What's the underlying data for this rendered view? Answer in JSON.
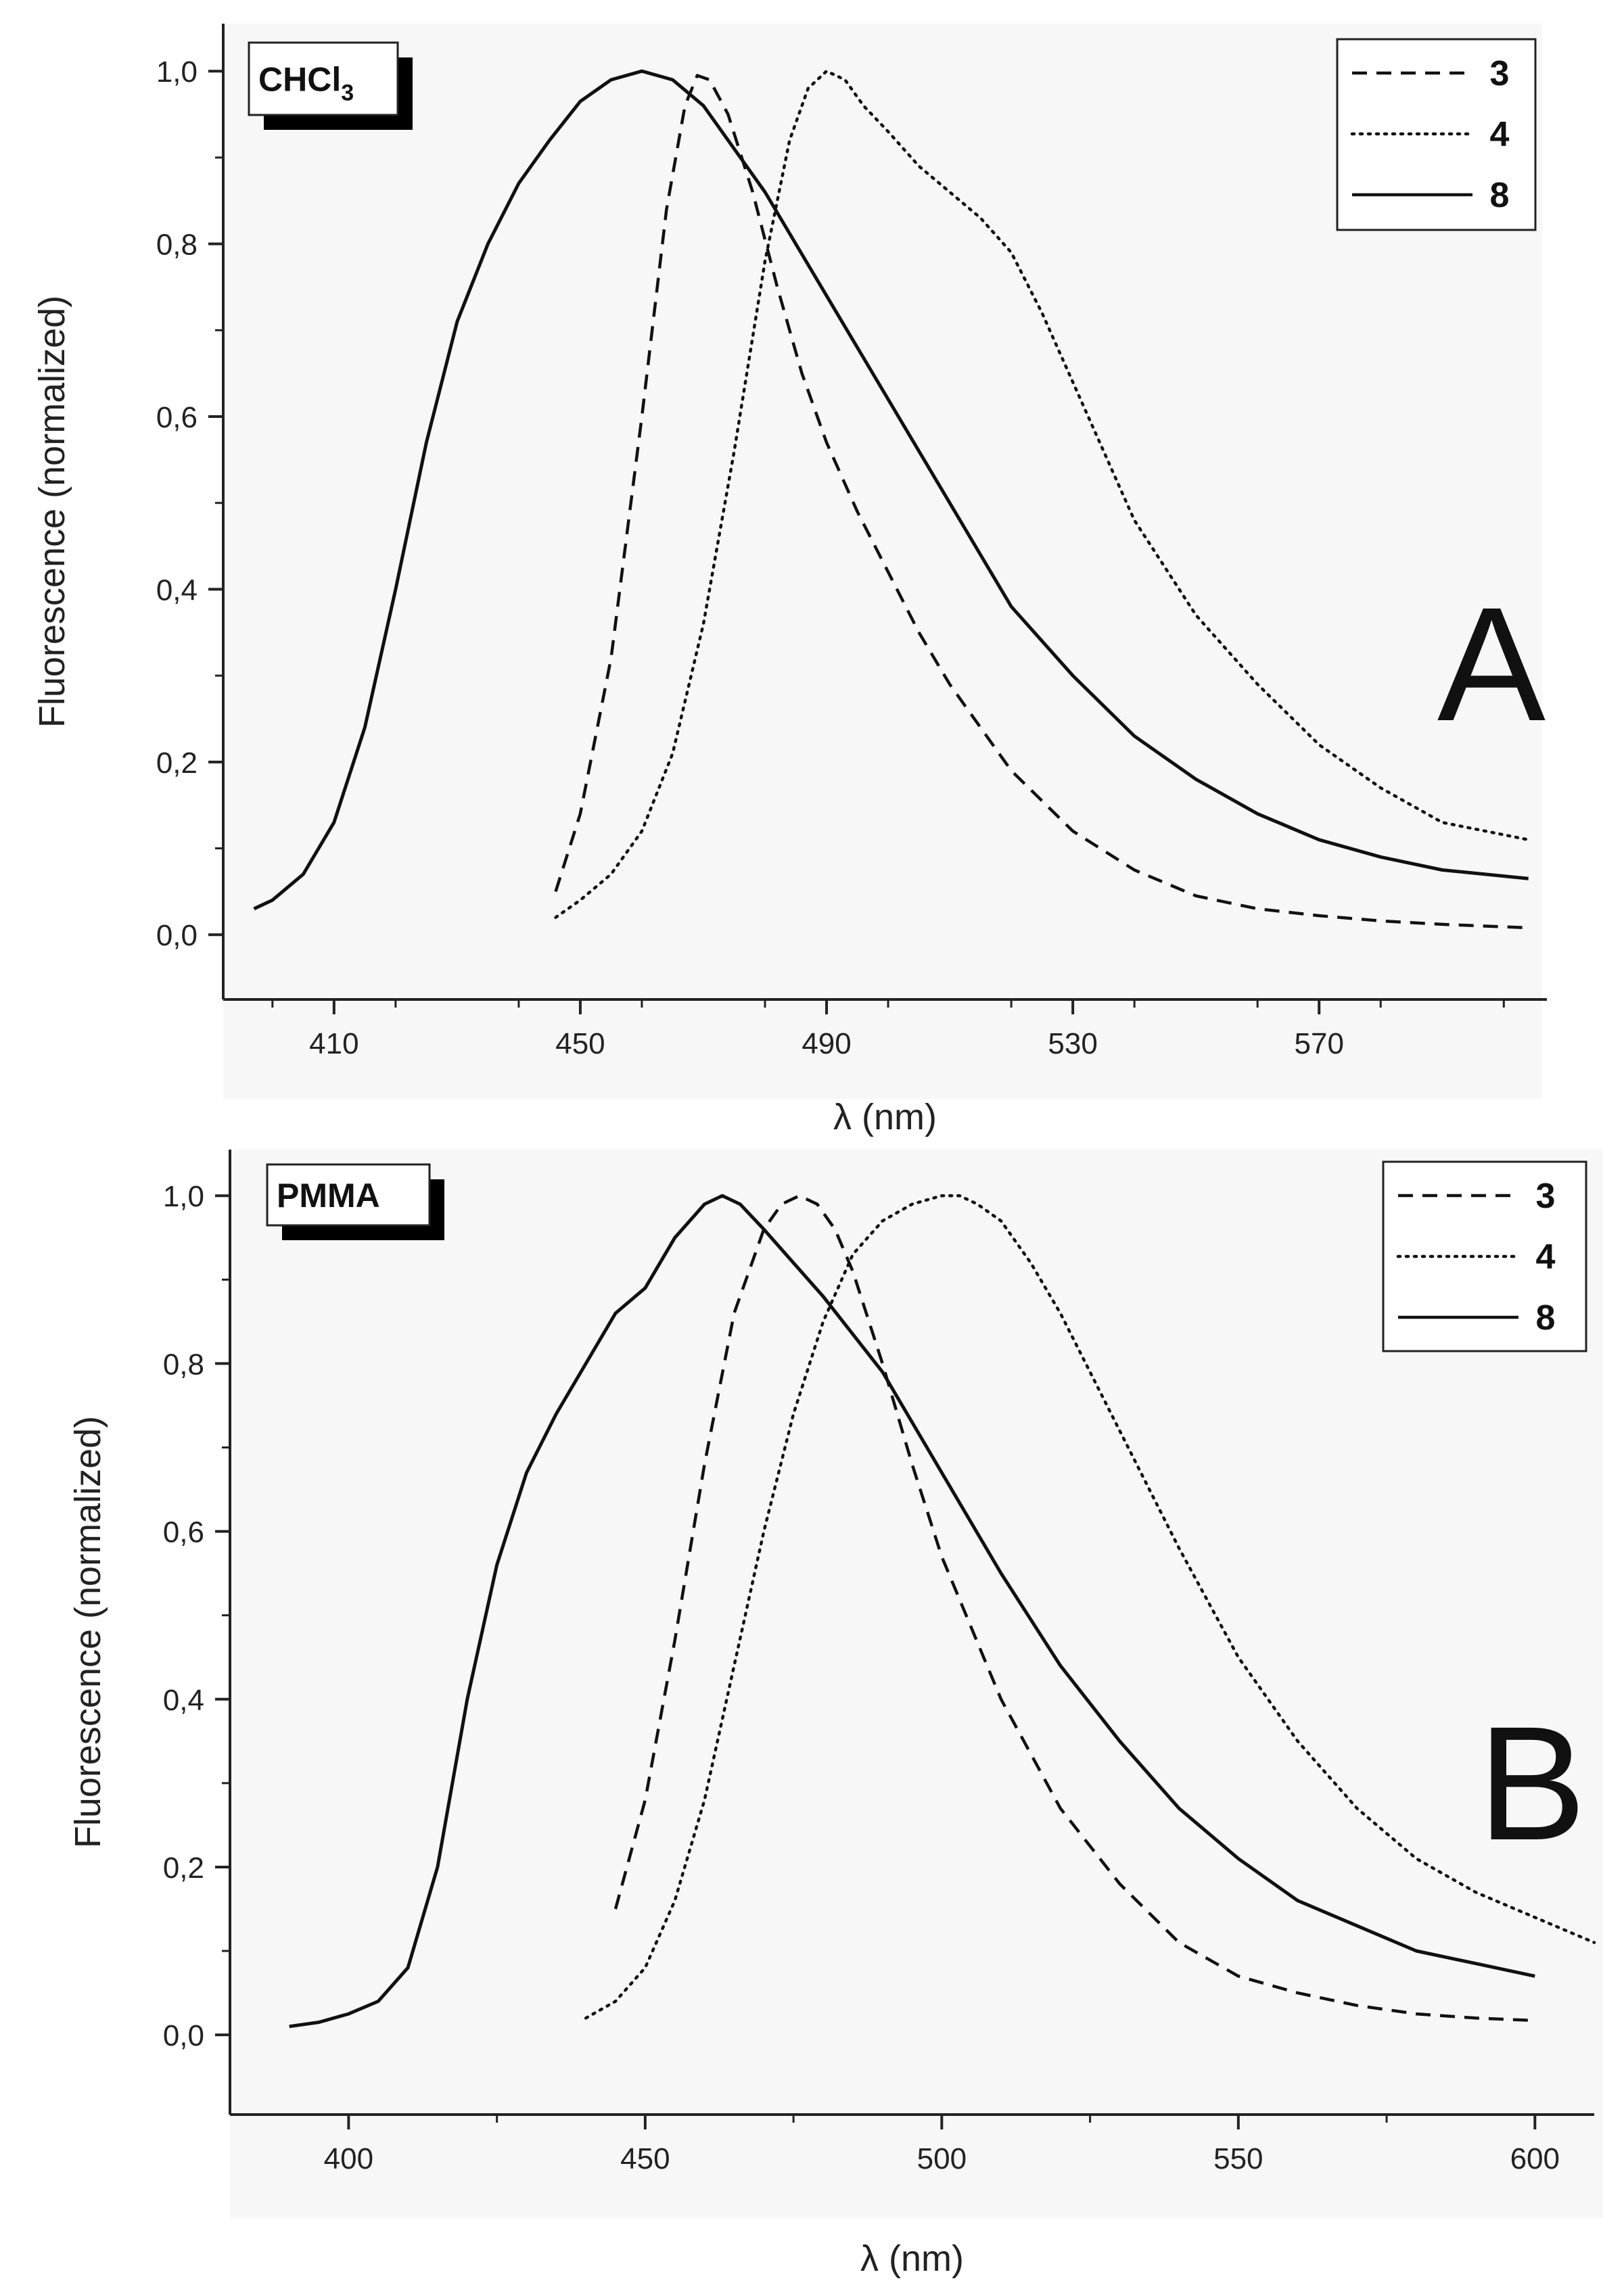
{
  "chart_data": [
    {
      "type": "line",
      "panel_label": "A",
      "solvent_label": "CHCl",
      "solvent_subscript": "3",
      "xlabel": "λ (nm)",
      "ylabel": "Fluorescence (normalized)",
      "xlim": [
        392,
        607
      ],
      "ylim": [
        -0.075,
        1.055
      ],
      "x_ticks": [
        410,
        450,
        490,
        530,
        570
      ],
      "x_tick_labels": [
        "410",
        "450",
        "490",
        "530",
        "570"
      ],
      "y_ticks": [
        0,
        0.2,
        0.4,
        0.6,
        0.8,
        1.0
      ],
      "y_tick_labels": [
        "0,0",
        "0,2",
        "0,4",
        "0,6",
        "0,8",
        "1,0"
      ],
      "legend_position": "top-right",
      "series": [
        {
          "name": "3",
          "style": "dashed",
          "x": [
            446,
            450,
            455,
            460,
            464,
            467,
            469,
            471,
            474,
            478,
            482,
            486,
            490,
            495,
            500,
            505,
            510,
            520,
            530,
            540,
            550,
            560,
            570,
            580,
            590,
            604
          ],
          "y": [
            0.05,
            0.14,
            0.32,
            0.6,
            0.84,
            0.96,
            0.995,
            0.99,
            0.95,
            0.86,
            0.75,
            0.65,
            0.57,
            0.49,
            0.42,
            0.35,
            0.29,
            0.19,
            0.12,
            0.075,
            0.045,
            0.03,
            0.022,
            0.016,
            0.012,
            0.008
          ]
        },
        {
          "name": "4",
          "style": "dotted",
          "x": [
            446,
            450,
            455,
            460,
            465,
            470,
            475,
            480,
            484,
            487,
            490,
            493,
            496,
            500,
            505,
            510,
            515,
            520,
            525,
            530,
            540,
            550,
            560,
            570,
            580,
            590,
            604
          ],
          "y": [
            0.02,
            0.04,
            0.07,
            0.12,
            0.21,
            0.36,
            0.56,
            0.78,
            0.92,
            0.98,
            1.0,
            0.99,
            0.96,
            0.93,
            0.89,
            0.86,
            0.83,
            0.79,
            0.72,
            0.64,
            0.48,
            0.37,
            0.29,
            0.22,
            0.17,
            0.13,
            0.11
          ]
        },
        {
          "name": "8",
          "style": "solid",
          "x": [
            397,
            400,
            405,
            410,
            415,
            420,
            425,
            430,
            435,
            440,
            445,
            450,
            455,
            460,
            465,
            470,
            480,
            490,
            500,
            510,
            520,
            530,
            540,
            550,
            560,
            570,
            580,
            590,
            604
          ],
          "y": [
            0.03,
            0.04,
            0.07,
            0.13,
            0.24,
            0.4,
            0.57,
            0.71,
            0.8,
            0.87,
            0.92,
            0.965,
            0.99,
            1.0,
            0.99,
            0.96,
            0.86,
            0.74,
            0.62,
            0.5,
            0.38,
            0.3,
            0.23,
            0.18,
            0.14,
            0.11,
            0.09,
            0.075,
            0.065
          ]
        }
      ]
    },
    {
      "type": "line",
      "panel_label": "B",
      "solvent_label": "PMMA",
      "solvent_subscript": "",
      "xlabel": "λ (nm)",
      "ylabel": "Fluorescence (normalized)",
      "xlim": [
        380,
        610
      ],
      "ylim": [
        -0.095,
        1.055
      ],
      "x_ticks": [
        400,
        450,
        500,
        550,
        600
      ],
      "x_tick_labels": [
        "400",
        "450",
        "500",
        "550",
        "600"
      ],
      "y_ticks": [
        0,
        0.2,
        0.4,
        0.6,
        0.8,
        1.0
      ],
      "y_tick_labels": [
        "0,0",
        "0,2",
        "0,4",
        "0,6",
        "0,8",
        "1,0"
      ],
      "legend_position": "top-right",
      "series": [
        {
          "name": "3",
          "style": "dashed",
          "x": [
            445,
            450,
            455,
            460,
            465,
            470,
            473,
            476,
            479,
            482,
            485,
            490,
            495,
            500,
            510,
            520,
            530,
            540,
            550,
            560,
            570,
            580,
            590,
            600
          ],
          "y": [
            0.15,
            0.28,
            0.47,
            0.68,
            0.86,
            0.96,
            0.99,
            1.0,
            0.99,
            0.96,
            0.91,
            0.8,
            0.68,
            0.57,
            0.4,
            0.27,
            0.18,
            0.11,
            0.07,
            0.05,
            0.035,
            0.025,
            0.02,
            0.017
          ]
        },
        {
          "name": "4",
          "style": "dotted",
          "x": [
            440,
            445,
            450,
            455,
            460,
            465,
            470,
            475,
            480,
            485,
            490,
            495,
            500,
            503,
            506,
            510,
            515,
            520,
            530,
            540,
            550,
            560,
            570,
            580,
            590,
            600,
            610
          ],
          "y": [
            0.02,
            0.04,
            0.08,
            0.16,
            0.28,
            0.44,
            0.6,
            0.74,
            0.85,
            0.93,
            0.97,
            0.99,
            1.0,
            1.0,
            0.99,
            0.97,
            0.92,
            0.86,
            0.72,
            0.58,
            0.45,
            0.35,
            0.27,
            0.21,
            0.17,
            0.14,
            0.11
          ]
        },
        {
          "name": "8",
          "style": "solid",
          "x": [
            390,
            395,
            400,
            405,
            410,
            415,
            420,
            425,
            430,
            435,
            440,
            445,
            450,
            455,
            460,
            463,
            466,
            470,
            480,
            490,
            500,
            510,
            520,
            530,
            540,
            550,
            560,
            570,
            580,
            590,
            600
          ],
          "y": [
            0.01,
            0.015,
            0.025,
            0.04,
            0.08,
            0.2,
            0.4,
            0.56,
            0.67,
            0.74,
            0.8,
            0.86,
            0.89,
            0.95,
            0.99,
            1.0,
            0.99,
            0.96,
            0.88,
            0.79,
            0.67,
            0.55,
            0.44,
            0.35,
            0.27,
            0.21,
            0.16,
            0.13,
            0.1,
            0.085,
            0.07
          ]
        }
      ]
    }
  ]
}
